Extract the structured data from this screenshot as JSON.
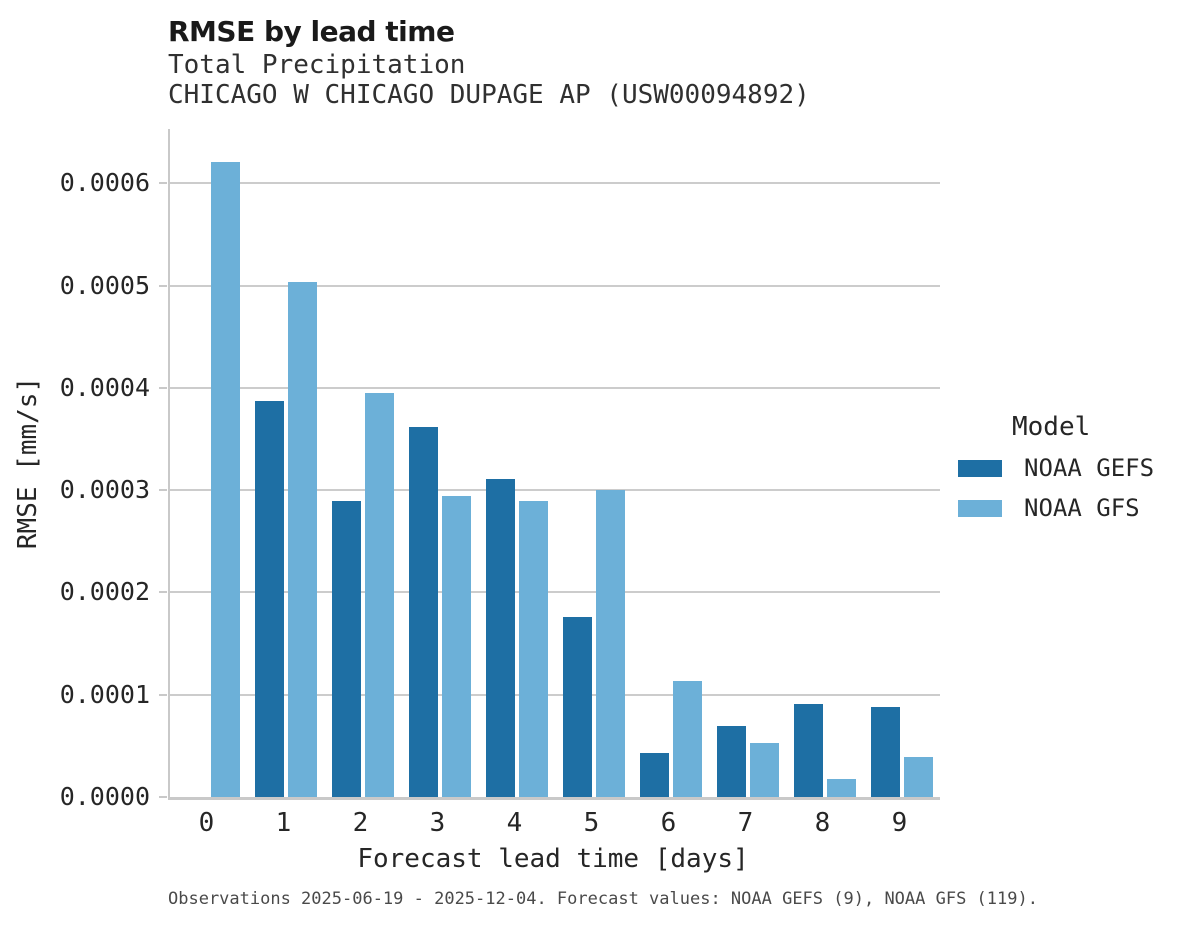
{
  "header": {
    "title": "RMSE by lead time",
    "subtitle1": "Total Precipitation",
    "subtitle2": "CHICAGO W CHICAGO DUPAGE AP (USW00094892)"
  },
  "caption": "Observations 2025-06-19 - 2025-12-04. Forecast values: NOAA GEFS (9), NOAA GFS (119).",
  "chart_data": {
    "type": "bar",
    "title": "RMSE by lead time",
    "subtitle": "Total Precipitation — CHICAGO W CHICAGO DUPAGE AP (USW00094892)",
    "xlabel": "Forecast lead time [days]",
    "ylabel": "RMSE [mm/s]",
    "categories": [
      "0",
      "1",
      "2",
      "3",
      "4",
      "5",
      "6",
      "7",
      "8",
      "9"
    ],
    "series": [
      {
        "name": "NOAA GEFS",
        "color": "#1e6fa4",
        "values": [
          null,
          0.000387,
          0.000289,
          0.000362,
          0.000311,
          0.000176,
          4.3e-05,
          6.9e-05,
          9.1e-05,
          8.8e-05
        ]
      },
      {
        "name": "NOAA GFS",
        "color": "#6cb0d8",
        "values": [
          0.000621,
          0.000503,
          0.000395,
          0.000294,
          0.000289,
          0.0003,
          0.000113,
          5.3e-05,
          1.8e-05,
          3.9e-05
        ]
      }
    ],
    "ylim": [
      0,
      0.000653
    ],
    "yticks": [
      0.0,
      0.0001,
      0.0002,
      0.0003,
      0.0004,
      0.0005,
      0.0006
    ],
    "ytick_labels": [
      "0.0000",
      "0.0001",
      "0.0002",
      "0.0003",
      "0.0004",
      "0.0005",
      "0.0006"
    ],
    "grid": true,
    "legend": {
      "title": "Model",
      "position": "right"
    },
    "colors": {
      "grid": "#cccccc",
      "spine": "#c9c9c9"
    }
  }
}
